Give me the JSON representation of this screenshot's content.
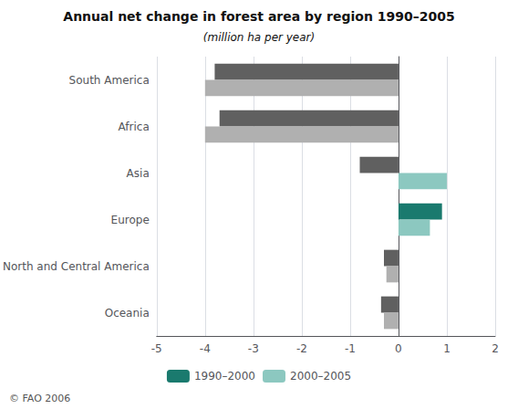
{
  "chart_data": {
    "type": "bar",
    "orientation": "horizontal",
    "title": "Annual net change in forest area by region 1990–2005",
    "subtitle": "(million ha per year)",
    "categories": [
      "South America",
      "Africa",
      "Asia",
      "Europe",
      "North and Central America",
      "Oceania"
    ],
    "series": [
      {
        "name": "1990–2000",
        "color": "#1a7a6e",
        "colors": [
          "#606060",
          "#606060",
          "#606060",
          "#1a7a6e",
          "#606060",
          "#606060"
        ],
        "values": [
          -3.8,
          -3.7,
          -0.8,
          0.9,
          -0.3,
          -0.36
        ]
      },
      {
        "name": "2000–2005",
        "color": "#8cc8c0",
        "colors": [
          "#b0b0b0",
          "#b0b0b0",
          "#8cc8c0",
          "#8cc8c0",
          "#b0b0b0",
          "#b0b0b0"
        ],
        "values": [
          -4.0,
          -4.0,
          1.0,
          0.65,
          -0.25,
          -0.3
        ]
      }
    ],
    "xlim": [
      -5,
      2
    ],
    "xticks": [
      -5,
      -4,
      -3,
      -2,
      -1,
      0,
      1,
      2
    ],
    "grid": true,
    "legend": "bottom",
    "annotations": [
      "© FAO 2006"
    ]
  }
}
